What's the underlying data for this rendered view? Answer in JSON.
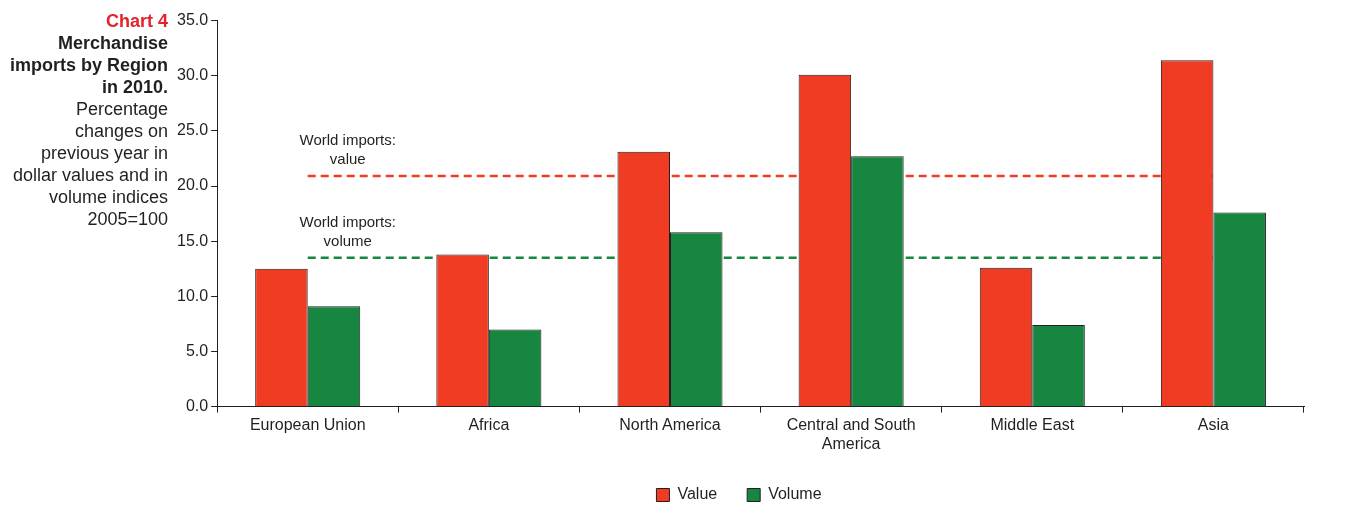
{
  "chart_data": {
    "type": "bar",
    "title": "Chart 4",
    "subtitle": "Merchandise imports by Region in 2010.",
    "annotations": [
      "Percentage changes on previous year in dollar values and in volume indices 2005=100"
    ],
    "categories": [
      "European Union",
      "Africa",
      "North America",
      "Central and South America",
      "Middle East",
      "Asia"
    ],
    "series": [
      {
        "name": "Value",
        "color": "#ef3c23",
        "values": [
          12.5,
          13.8,
          23.1,
          30.1,
          12.6,
          31.4
        ]
      },
      {
        "name": "Volume",
        "color": "#168640",
        "values": [
          9.1,
          7.0,
          15.8,
          22.7,
          7.4,
          17.6
        ]
      }
    ],
    "ylim": [
      0,
      35
    ],
    "yticks": [
      {
        "value": 0,
        "label": "0.0"
      },
      {
        "value": 5,
        "label": "5.0"
      },
      {
        "value": 10,
        "label": "10.0"
      },
      {
        "value": 15,
        "label": "15.0"
      },
      {
        "value": 20,
        "label": "20.0"
      },
      {
        "value": 25,
        "label": "25.0"
      },
      {
        "value": 30,
        "label": "30.0"
      },
      {
        "value": 35,
        "label": "35.0"
      }
    ],
    "grid": false,
    "legend": "bottom",
    "ref_lines": [
      {
        "axis": "y",
        "value": 20.9,
        "label": "World imports: value",
        "color": "#ef3c23",
        "line_style": "dashed"
      },
      {
        "axis": "y",
        "value": 13.5,
        "label": "World imports: volume",
        "color": "#168640",
        "line_style": "dashed"
      }
    ]
  }
}
